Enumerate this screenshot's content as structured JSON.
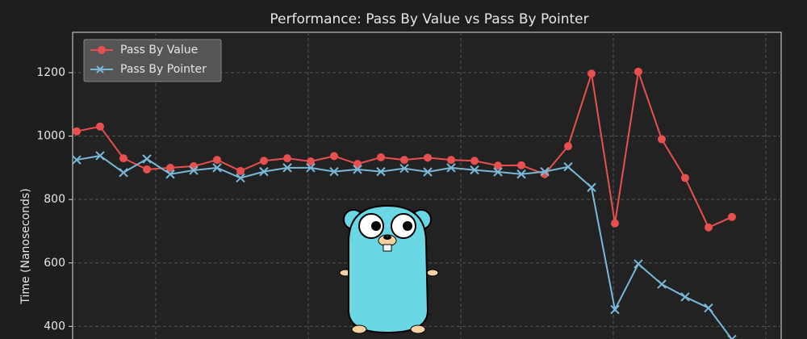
{
  "chart_data": {
    "type": "line",
    "title": "Performance: Pass By Value vs Pass By Pointer",
    "y_label": "Time (Nanoseconds)",
    "categories": [
      null,
      null,
      null,
      null,
      null,
      null,
      null,
      null,
      null,
      null,
      null,
      null,
      null,
      null,
      null,
      null,
      null,
      null,
      null,
      null,
      null,
      null,
      null,
      null,
      null,
      null,
      null,
      null,
      null
    ],
    "series": [
      {
        "name": "Pass By Value",
        "color": "#e8504f",
        "marker": "o",
        "values": [
          1015,
          1030,
          930,
          895,
          900,
          905,
          925,
          890,
          922,
          930,
          920,
          937,
          912,
          933,
          925,
          932,
          925,
          922,
          907,
          908,
          880,
          968,
          1197,
          725,
          1203,
          990,
          868,
          712,
          745
        ]
      },
      {
        "name": "Pass By Pointer",
        "color": "#7ab8d9",
        "marker": "x",
        "values": [
          925,
          938,
          885,
          928,
          880,
          892,
          900,
          868,
          888,
          900,
          900,
          888,
          895,
          888,
          898,
          887,
          900,
          893,
          887,
          880,
          888,
          903,
          838,
          453,
          597,
          533,
          493,
          458,
          359
        ]
      }
    ],
    "ylim": [
      350,
      1325
    ],
    "yticks": [
      400,
      600,
      800,
      1000,
      1200
    ],
    "grid": true,
    "legend": "upper-left"
  }
}
